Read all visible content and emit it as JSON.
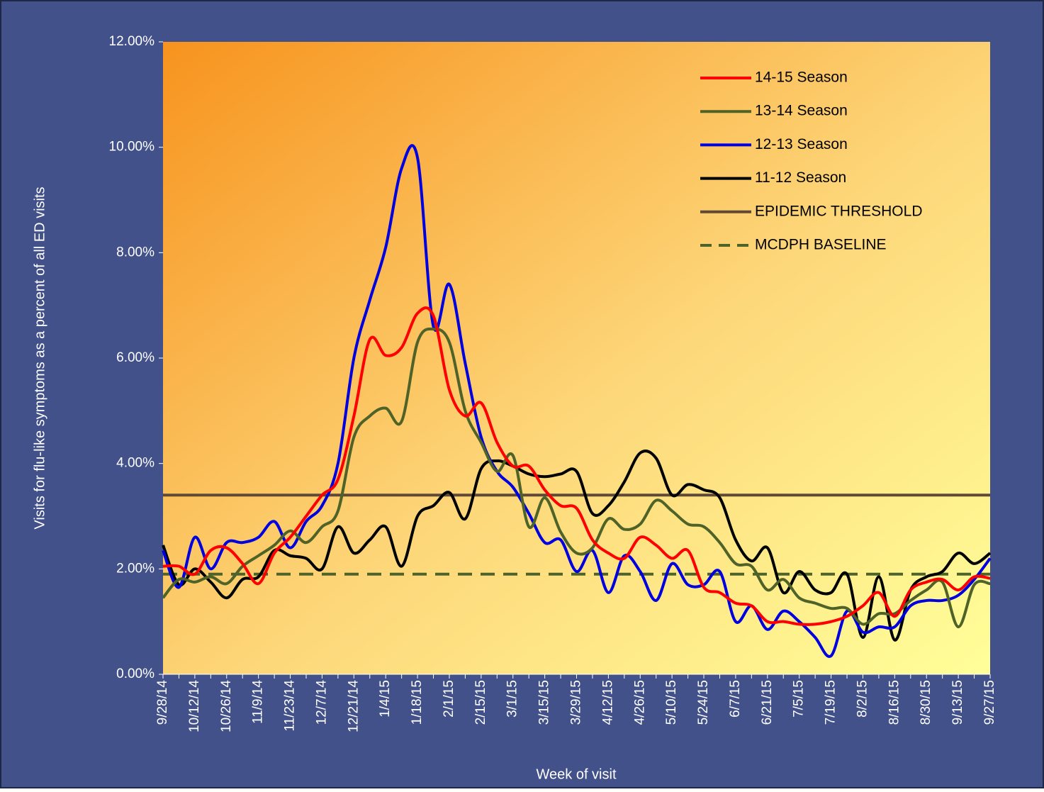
{
  "chart_data": {
    "type": "line",
    "xlabel": "Week of visit",
    "ylabel": "Visits for flu-like symptoms as a percent of all ED visits",
    "categories": [
      "9/28/14",
      null,
      "10/12/14",
      null,
      "10/26/14",
      null,
      "11/9/14",
      null,
      "11/23/14",
      null,
      "12/7/14",
      null,
      "12/21/14",
      null,
      "1/4/15",
      null,
      "1/18/15",
      null,
      "2/1/15",
      null,
      "2/15/15",
      null,
      "3/1/15",
      null,
      "3/15/15",
      null,
      "3/29/15",
      null,
      "4/12/15",
      null,
      "4/26/15",
      null,
      "5/10/15",
      null,
      "5/24/15",
      null,
      "6/7/15",
      null,
      "6/21/15",
      null,
      "7/5/15",
      null,
      "7/19/15",
      null,
      "8/2/15",
      null,
      "8/16/15",
      null,
      "8/30/15",
      null,
      "9/13/15",
      null,
      "9/27/15"
    ],
    "series": [
      {
        "name": "14-15 Season",
        "color": "#ff0000",
        "values": [
          2.05,
          2.05,
          1.9,
          2.35,
          2.4,
          2.1,
          1.72,
          2.3,
          2.6,
          3.0,
          3.4,
          3.7,
          4.9,
          6.35,
          6.05,
          6.2,
          6.85,
          6.8,
          5.4,
          4.9,
          5.15,
          4.4,
          3.95,
          3.95,
          3.5,
          3.2,
          3.15,
          2.55,
          2.3,
          2.2,
          2.6,
          2.45,
          2.2,
          2.35,
          1.65,
          1.55,
          1.35,
          1.3,
          1.0,
          1.0,
          0.95,
          0.95,
          1.0,
          1.1,
          1.3,
          1.55,
          1.1,
          1.6,
          1.75,
          1.8,
          1.6,
          1.85,
          1.82
        ]
      },
      {
        "name": "13-14 Season",
        "color": "#4f6228",
        "values": [
          1.45,
          1.8,
          1.75,
          1.85,
          1.72,
          2.05,
          2.25,
          2.45,
          2.72,
          2.5,
          2.8,
          3.1,
          4.5,
          4.9,
          5.05,
          4.8,
          6.3,
          6.55,
          6.3,
          5.0,
          4.4,
          3.85,
          4.15,
          2.8,
          3.35,
          2.7,
          2.3,
          2.4,
          2.95,
          2.75,
          2.85,
          3.3,
          3.1,
          2.85,
          2.8,
          2.5,
          2.1,
          2.05,
          1.6,
          1.8,
          1.45,
          1.35,
          1.25,
          1.25,
          0.95,
          1.15,
          1.15,
          1.4,
          1.6,
          1.75,
          0.9,
          1.7,
          1.72
        ]
      },
      {
        "name": "12-13 Season",
        "color": "#0000e0",
        "values": [
          2.35,
          1.65,
          2.6,
          2.0,
          2.5,
          2.5,
          2.6,
          2.9,
          2.4,
          2.9,
          3.2,
          4.0,
          6.0,
          7.1,
          8.1,
          9.6,
          9.8,
          6.6,
          7.4,
          5.9,
          4.5,
          3.85,
          3.55,
          3.05,
          2.5,
          2.55,
          1.95,
          2.35,
          1.55,
          2.25,
          1.95,
          1.4,
          2.1,
          1.7,
          1.7,
          1.95,
          1.0,
          1.3,
          0.85,
          1.2,
          1.0,
          0.7,
          0.35,
          1.2,
          0.8,
          0.9,
          0.9,
          1.3,
          1.4,
          1.4,
          1.5,
          1.8,
          2.2
        ]
      },
      {
        "name": "11-12 Season",
        "color": "#000000",
        "values": [
          2.45,
          1.7,
          2.0,
          1.75,
          1.45,
          1.8,
          1.85,
          2.35,
          2.25,
          2.2,
          2.0,
          2.8,
          2.3,
          2.55,
          2.8,
          2.05,
          3.0,
          3.2,
          3.45,
          2.95,
          3.9,
          4.05,
          3.95,
          3.8,
          3.75,
          3.8,
          3.85,
          3.05,
          3.2,
          3.65,
          4.2,
          4.1,
          3.4,
          3.6,
          3.5,
          3.35,
          2.55,
          2.15,
          2.4,
          1.55,
          1.95,
          1.6,
          1.55,
          1.9,
          0.7,
          1.85,
          0.65,
          1.6,
          1.85,
          1.95,
          2.3,
          2.1,
          2.3
        ]
      }
    ],
    "reference_lines": [
      {
        "name": "EPIDEMIC THRESHOLD",
        "color": "#604a36",
        "value": 3.4,
        "dashed": false
      },
      {
        "name": "MCDPH BASELINE",
        "color": "#4f6228",
        "value": 1.9,
        "dashed": true
      }
    ],
    "ylim": [
      0,
      12
    ],
    "yticks": [
      {
        "value": 0,
        "label": "0.00%"
      },
      {
        "value": 2,
        "label": "2.00%"
      },
      {
        "value": 4,
        "label": "4.00%"
      },
      {
        "value": 6,
        "label": "6.00%"
      },
      {
        "value": 8,
        "label": "8.00%"
      },
      {
        "value": 10,
        "label": "10.00%"
      },
      {
        "value": 12,
        "label": "12.00%"
      }
    ],
    "legend": "upper right"
  }
}
